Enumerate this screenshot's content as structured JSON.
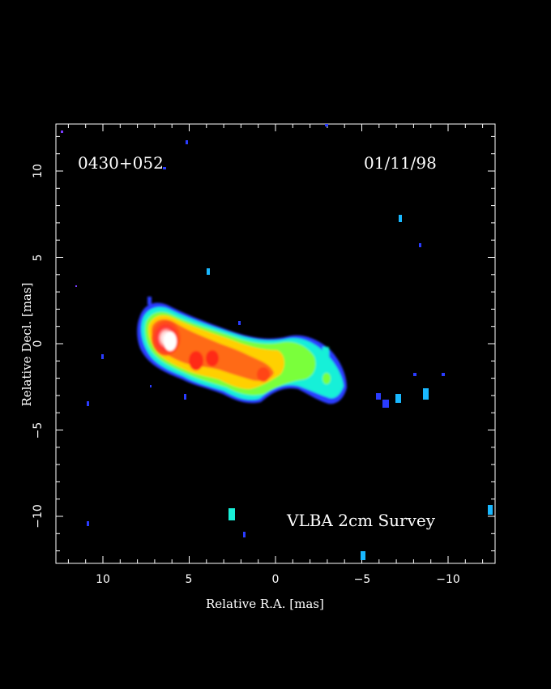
{
  "source_name": "0430+052",
  "date": "01/11/98",
  "survey": "VLBA 2cm Survey",
  "axes": {
    "xlabel": "Relative R.A. [mas]",
    "ylabel": "Relative Decl. [mas]",
    "x_ticks": [
      "10",
      "5",
      "0",
      "−5",
      "−10"
    ],
    "y_ticks": [
      "10",
      "5",
      "0",
      "−5",
      "−10"
    ]
  },
  "colors": {
    "background": "#000000",
    "frame": "#ffffff",
    "low": "#2a3cff",
    "mid_low": "#19f0d8",
    "mid": "#7aff3a",
    "mid_high": "#ffd000",
    "high": "#ff4a14",
    "peak": "#ffffff"
  }
}
